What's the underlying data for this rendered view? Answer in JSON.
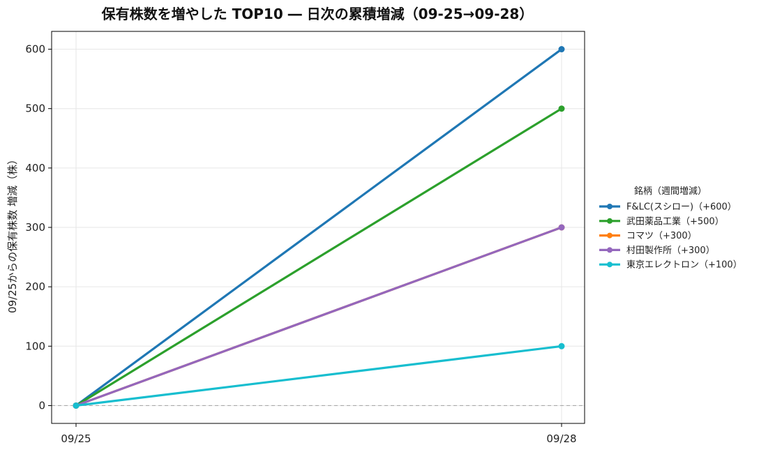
{
  "chart_data": {
    "type": "line",
    "title": "保有株数を増やした TOP10 ― 日次の累積増減（09-25→09-28）",
    "xlabel": "",
    "ylabel": "09/25からの保有株数 増減（株）",
    "categories": [
      "09/25",
      "09/28"
    ],
    "ylim": [
      -30,
      630
    ],
    "yticks": [
      0,
      100,
      200,
      300,
      400,
      500,
      600
    ],
    "grid": true,
    "zero_line": true,
    "legend": {
      "title": "銘柄（週間増減）",
      "placement": "right"
    },
    "series": [
      {
        "name": "F&LC(スシロー)（+600）",
        "values": [
          0,
          600
        ],
        "color": "#1f77b4"
      },
      {
        "name": "武田薬品工業（+500）",
        "values": [
          0,
          500
        ],
        "color": "#2ca02c"
      },
      {
        "name": "コマツ（+300）",
        "values": [
          0,
          300
        ],
        "color": "#ff7f0e"
      },
      {
        "name": "村田製作所（+300）",
        "values": [
          0,
          300
        ],
        "color": "#9467bd"
      },
      {
        "name": "東京エレクトロン（+100）",
        "values": [
          0,
          100
        ],
        "color": "#17becf"
      }
    ]
  }
}
